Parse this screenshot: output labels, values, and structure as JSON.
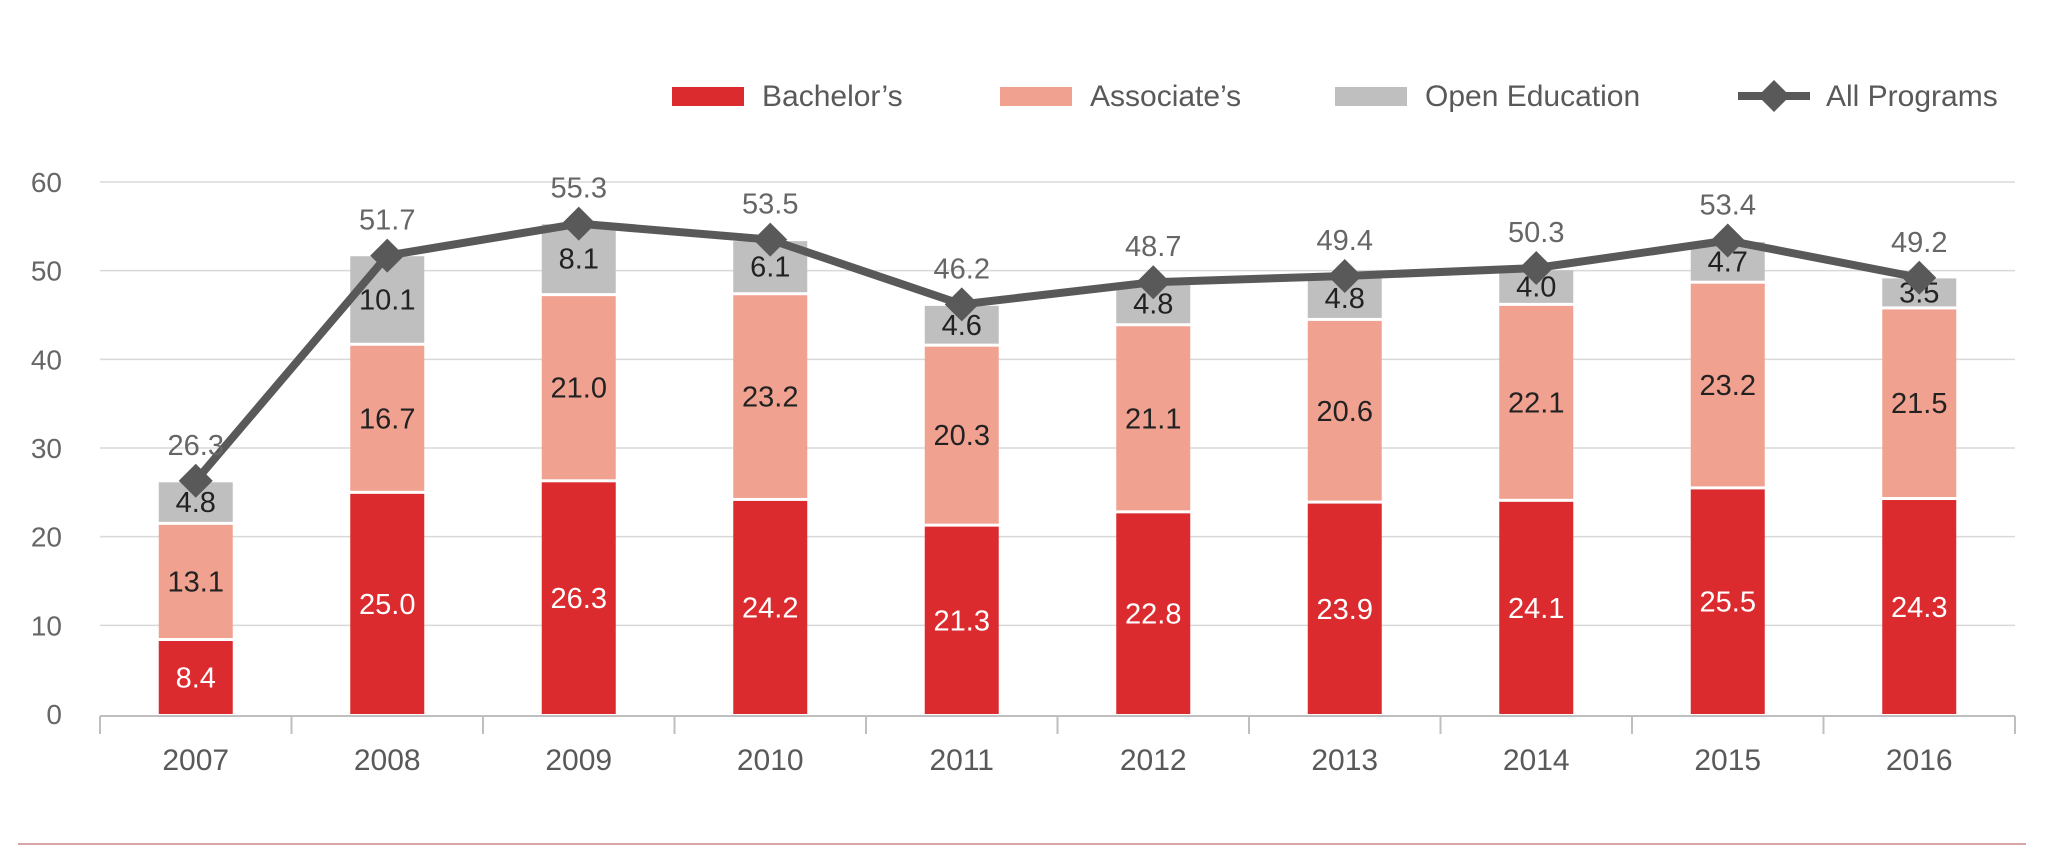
{
  "chart_data": {
    "type": "bar",
    "stacked": true,
    "categories": [
      "2007",
      "2008",
      "2009",
      "2010",
      "2011",
      "2012",
      "2013",
      "2014",
      "2015",
      "2016"
    ],
    "ylim": [
      0,
      60
    ],
    "yticks": [
      0,
      10,
      20,
      30,
      40,
      50,
      60
    ],
    "grid": true,
    "legend_position": "top-right",
    "series": [
      {
        "name": "Bachelor’s",
        "color": "#dc2b2f",
        "label_color": "#ffffff",
        "values": [
          8.4,
          25.0,
          26.3,
          24.2,
          21.3,
          22.8,
          23.9,
          24.1,
          25.5,
          24.3
        ],
        "labels": [
          "8.4",
          "25.0",
          "26.3",
          "24.2",
          "21.3",
          "22.8",
          "23.9",
          "24.1",
          "25.5",
          "24.3"
        ]
      },
      {
        "name": "Associate’s",
        "color": "#f0a190",
        "label_color": "#222222",
        "values": [
          13.1,
          16.7,
          21.0,
          23.2,
          20.3,
          21.1,
          20.6,
          22.1,
          23.2,
          21.5
        ],
        "labels": [
          "13.1",
          "16.7",
          "21.0",
          "23.2",
          "20.3",
          "21.1",
          "20.6",
          "22.1",
          "23.2",
          "21.5"
        ]
      },
      {
        "name": "Open Education",
        "color": "#bfbfbf",
        "label_color": "#222222",
        "values": [
          4.8,
          10.1,
          8.1,
          6.1,
          4.6,
          4.8,
          4.8,
          4.0,
          4.7,
          3.5
        ],
        "labels": [
          "4.8",
          "10.1",
          "8.1",
          "6.1",
          "4.6",
          "4.8",
          "4.8",
          "4.0",
          "4.7",
          "3.5"
        ]
      }
    ],
    "line": {
      "name": "All Programs",
      "color": "#595959",
      "type": "line",
      "values": [
        26.3,
        51.7,
        55.3,
        53.5,
        46.2,
        48.7,
        49.4,
        50.3,
        53.4,
        49.2
      ],
      "labels": [
        "26.3",
        "51.7",
        "55.3",
        "53.5",
        "46.2",
        "48.7",
        "49.4",
        "50.3",
        "53.4",
        "49.2"
      ]
    }
  }
}
